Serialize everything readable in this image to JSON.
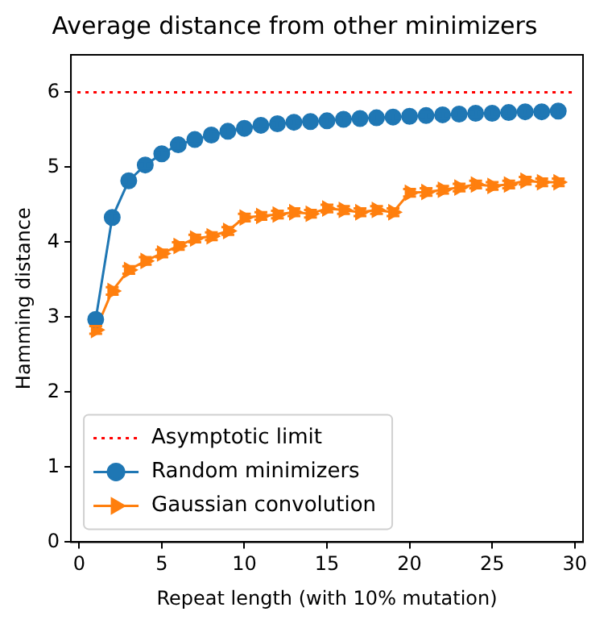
{
  "chart_data": {
    "type": "line",
    "title": "Average distance from other minimizers",
    "xlabel": "Repeat length (with 10% mutation)",
    "ylabel": "Hamming distance",
    "xlim": [
      -0.5,
      30.5
    ],
    "xticks": [
      0,
      5,
      10,
      15,
      20,
      25,
      30
    ],
    "ylim": [
      0,
      6.5
    ],
    "yticks": [
      0,
      1,
      2,
      3,
      4,
      5,
      6
    ],
    "grid": false,
    "legend": "bottom left",
    "ref_lines": [
      {
        "axis": "y",
        "value": 6,
        "label": "Asymptotic limit",
        "color": "#ff0000",
        "line_style": "dotted"
      }
    ],
    "series": [
      {
        "name": "Random minimizers",
        "color": "#1f77b4",
        "marker": "circle",
        "x": [
          1,
          2,
          3,
          4,
          5,
          6,
          7,
          8,
          9,
          10,
          11,
          12,
          13,
          14,
          15,
          16,
          17,
          18,
          19,
          20,
          21,
          22,
          23,
          24,
          25,
          26,
          27,
          28,
          29
        ],
        "values": [
          2.97,
          4.33,
          4.82,
          5.03,
          5.18,
          5.3,
          5.37,
          5.43,
          5.48,
          5.52,
          5.56,
          5.58,
          5.6,
          5.61,
          5.62,
          5.64,
          5.65,
          5.66,
          5.67,
          5.68,
          5.69,
          5.7,
          5.71,
          5.72,
          5.72,
          5.73,
          5.74,
          5.74,
          5.75
        ],
        "errors": [
          0.05,
          0.05,
          0.05,
          0.05,
          0.05,
          0.05,
          0.05,
          0.05,
          0.05,
          0.05,
          0.05,
          0.05,
          0.05,
          0.05,
          0.05,
          0.05,
          0.05,
          0.05,
          0.05,
          0.05,
          0.05,
          0.05,
          0.05,
          0.05,
          0.05,
          0.05,
          0.05,
          0.05,
          0.05
        ]
      },
      {
        "name": "Gaussian convolution",
        "color": "#ff7f0e",
        "marker": "triangle",
        "x": [
          1,
          2,
          3,
          4,
          5,
          6,
          7,
          8,
          9,
          10,
          11,
          12,
          13,
          14,
          15,
          16,
          17,
          18,
          19,
          20,
          21,
          22,
          23,
          24,
          25,
          26,
          27,
          28,
          29
        ],
        "values": [
          2.83,
          3.35,
          3.63,
          3.75,
          3.85,
          3.95,
          4.05,
          4.08,
          4.15,
          4.33,
          4.35,
          4.37,
          4.4,
          4.38,
          4.45,
          4.43,
          4.4,
          4.43,
          4.4,
          4.66,
          4.67,
          4.7,
          4.73,
          4.77,
          4.75,
          4.77,
          4.82,
          4.8,
          4.8
        ],
        "errors": [
          0.05,
          0.05,
          0.05,
          0.05,
          0.05,
          0.05,
          0.05,
          0.05,
          0.05,
          0.05,
          0.05,
          0.05,
          0.05,
          0.05,
          0.05,
          0.05,
          0.05,
          0.05,
          0.05,
          0.05,
          0.05,
          0.05,
          0.05,
          0.05,
          0.05,
          0.05,
          0.05,
          0.05,
          0.05
        ]
      }
    ]
  }
}
